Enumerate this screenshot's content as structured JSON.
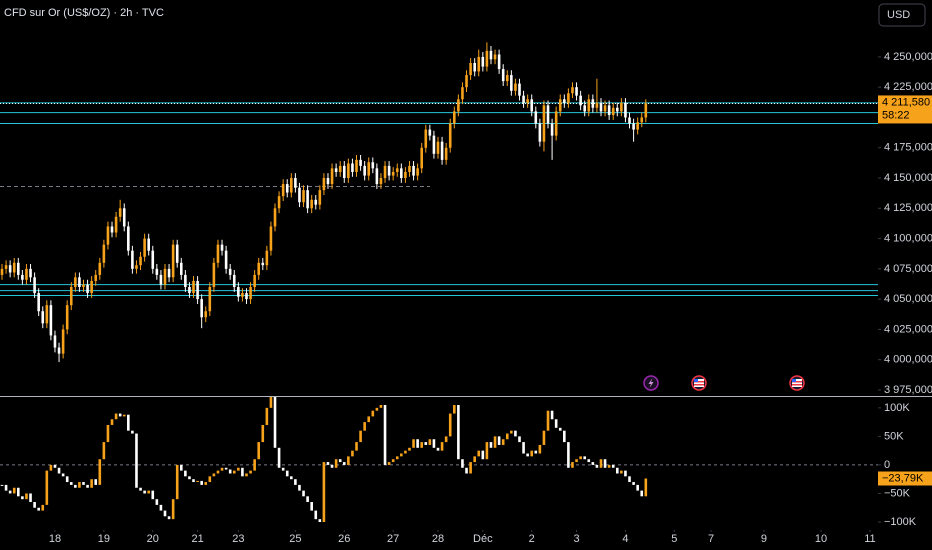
{
  "header": {
    "title": "CFD sur Or (US$/OZ) · 2h · TVC",
    "currency": "USD"
  },
  "chart_data": [
    {
      "type": "candlestick",
      "open": [
        4070,
        4075,
        4078,
        4072,
        4080,
        4070,
        4066,
        4075,
        4068,
        4055,
        4040,
        4030,
        4045,
        4020,
        4010,
        4005,
        4025,
        4045,
        4060,
        4068,
        4060,
        4062,
        4055,
        4065,
        4070,
        4080,
        4095,
        4110,
        4105,
        4118,
        4125,
        4110,
        4090,
        4075,
        4078,
        4085,
        4100,
        4090,
        4075,
        4070,
        4062,
        4075,
        4068,
        4095,
        4080,
        4070,
        4060,
        4055,
        4065,
        4050,
        4035,
        4040,
        4060,
        4080,
        4095,
        4090,
        4075,
        4070,
        4060,
        4052,
        4055,
        4050,
        4060,
        4070,
        4080,
        4078,
        4090,
        4110,
        4125,
        4135,
        4145,
        4138,
        4150,
        4142,
        4130,
        4140,
        4125,
        4132,
        4128,
        4140,
        4150,
        4145,
        4158,
        4155,
        4160,
        4150,
        4162,
        4155,
        4165,
        4160,
        4152,
        4163,
        4158,
        4145,
        4150,
        4160,
        4152,
        4155,
        4158,
        4150,
        4155,
        4160,
        4152,
        4158,
        4175,
        4190,
        4185,
        4170,
        4180,
        4165,
        4175,
        4195,
        4205,
        4215,
        4225,
        4235,
        4245,
        4238,
        4250,
        4242,
        4255,
        4248,
        4252,
        4240,
        4230,
        4235,
        4222,
        4228,
        4218,
        4212,
        4215,
        4205,
        4195,
        4180,
        4210,
        4195,
        4185,
        4205,
        4215,
        4212,
        4220,
        4225,
        4218,
        4210,
        4205,
        4215,
        4208,
        4212,
        4205,
        4210,
        4202,
        4208,
        4205,
        4212,
        4200,
        4195,
        4190,
        4196,
        4200
      ],
      "high": [
        4079,
        4082,
        4082,
        4084,
        4084,
        4074,
        4079,
        4079,
        4072,
        4059,
        4044,
        4049,
        4049,
        4024,
        4014,
        4029,
        4049,
        4064,
        4072,
        4072,
        4066,
        4066,
        4069,
        4074,
        4084,
        4099,
        4114,
        4114,
        4122,
        4132,
        4129,
        4114,
        4094,
        4082,
        4089,
        4104,
        4104,
        4094,
        4079,
        4074,
        4079,
        4079,
        4099,
        4099,
        4084,
        4074,
        4064,
        4069,
        4069,
        4054,
        4044,
        4064,
        4084,
        4099,
        4099,
        4094,
        4079,
        4074,
        4064,
        4059,
        4059,
        4064,
        4074,
        4084,
        4084,
        4094,
        4114,
        4129,
        4139,
        4149,
        4149,
        4154,
        4154,
        4146,
        4144,
        4144,
        4136,
        4136,
        4144,
        4154,
        4154,
        4162,
        4162,
        4164,
        4164,
        4166,
        4166,
        4169,
        4169,
        4164,
        4167,
        4167,
        4162,
        4154,
        4164,
        4164,
        4159,
        4162,
        4162,
        4159,
        4164,
        4164,
        4162,
        4179,
        4194,
        4194,
        4189,
        4184,
        4184,
        4179,
        4199,
        4209,
        4219,
        4229,
        4239,
        4249,
        4249,
        4256,
        4254,
        4262,
        4259,
        4256,
        4256,
        4244,
        4239,
        4239,
        4232,
        4232,
        4222,
        4219,
        4219,
        4209,
        4199,
        4214,
        4214,
        4199,
        4209,
        4219,
        4219,
        4224,
        4229,
        4229,
        4222,
        4214,
        4219,
        4219,
        4232,
        4216,
        4214,
        4214,
        4212,
        4212,
        4216,
        4216,
        4204,
        4199,
        4200,
        4204,
        4215
      ],
      "low": [
        4066,
        4071,
        4068,
        4068,
        4066,
        4062,
        4062,
        4064,
        4051,
        4036,
        4026,
        4026,
        4016,
        4006,
        3998,
        4001,
        4021,
        4041,
        4056,
        4056,
        4056,
        4051,
        4051,
        4061,
        4066,
        4076,
        4091,
        4101,
        4101,
        4114,
        4106,
        4086,
        4071,
        4071,
        4074,
        4081,
        4086,
        4071,
        4066,
        4058,
        4058,
        4064,
        4064,
        4076,
        4066,
        4056,
        4051,
        4051,
        4046,
        4026,
        4031,
        4036,
        4056,
        4076,
        4086,
        4071,
        4066,
        4056,
        4048,
        4048,
        4046,
        4046,
        4056,
        4066,
        4074,
        4074,
        4086,
        4106,
        4121,
        4131,
        4134,
        4134,
        4138,
        4126,
        4126,
        4121,
        4121,
        4124,
        4124,
        4136,
        4141,
        4141,
        4151,
        4151,
        4146,
        4146,
        4151,
        4151,
        4156,
        4148,
        4148,
        4154,
        4141,
        4141,
        4146,
        4148,
        4148,
        4151,
        4146,
        4146,
        4151,
        4148,
        4148,
        4154,
        4171,
        4181,
        4166,
        4166,
        4161,
        4161,
        4171,
        4191,
        4201,
        4211,
        4221,
        4231,
        4234,
        4234,
        4238,
        4238,
        4244,
        4244,
        4236,
        4226,
        4226,
        4218,
        4218,
        4214,
        4208,
        4208,
        4201,
        4191,
        4176,
        4172,
        4191,
        4165,
        4181,
        4201,
        4208,
        4208,
        4216,
        4214,
        4206,
        4201,
        4201,
        4204,
        4204,
        4201,
        4201,
        4198,
        4198,
        4201,
        4201,
        4196,
        4191,
        4180,
        4186,
        4192,
        4196
      ],
      "close": [
        4075,
        4078,
        4072,
        4080,
        4070,
        4066,
        4075,
        4068,
        4055,
        4040,
        4030,
        4045,
        4020,
        4010,
        4005,
        4025,
        4045,
        4060,
        4068,
        4060,
        4062,
        4055,
        4065,
        4070,
        4080,
        4095,
        4110,
        4105,
        4118,
        4125,
        4110,
        4090,
        4075,
        4078,
        4085,
        4100,
        4090,
        4075,
        4070,
        4062,
        4075,
        4068,
        4095,
        4080,
        4070,
        4060,
        4055,
        4065,
        4050,
        4035,
        4040,
        4060,
        4080,
        4095,
        4090,
        4075,
        4070,
        4060,
        4052,
        4055,
        4050,
        4060,
        4070,
        4080,
        4078,
        4090,
        4110,
        4125,
        4135,
        4145,
        4138,
        4150,
        4142,
        4130,
        4140,
        4125,
        4132,
        4128,
        4140,
        4150,
        4145,
        4158,
        4155,
        4160,
        4150,
        4162,
        4155,
        4165,
        4160,
        4152,
        4163,
        4158,
        4145,
        4150,
        4160,
        4152,
        4155,
        4158,
        4150,
        4155,
        4160,
        4152,
        4158,
        4175,
        4190,
        4185,
        4170,
        4180,
        4165,
        4175,
        4195,
        4205,
        4215,
        4225,
        4235,
        4245,
        4238,
        4250,
        4242,
        4255,
        4248,
        4252,
        4240,
        4230,
        4235,
        4222,
        4228,
        4218,
        4212,
        4215,
        4205,
        4195,
        4180,
        4210,
        4195,
        4185,
        4205,
        4215,
        4212,
        4220,
        4225,
        4218,
        4210,
        4205,
        4215,
        4208,
        4212,
        4205,
        4210,
        4202,
        4208,
        4205,
        4212,
        4200,
        4195,
        4190,
        4196,
        4200,
        4211.58
      ],
      "up_color": "#f7a21b",
      "down_color": "#ffffff",
      "xlim": [
        0,
        214
      ],
      "xticks": [
        {
          "value": 13,
          "label": "18"
        },
        {
          "value": 25,
          "label": "19"
        },
        {
          "value": 37,
          "label": "20"
        },
        {
          "value": 48,
          "label": "21"
        },
        {
          "value": 58,
          "label": "23"
        },
        {
          "value": 72,
          "label": "25"
        },
        {
          "value": 84,
          "label": "26"
        },
        {
          "value": 96,
          "label": "27"
        },
        {
          "value": 107,
          "label": "28"
        },
        {
          "value": 118,
          "label": "Déc"
        },
        {
          "value": 130,
          "label": "2"
        },
        {
          "value": 141,
          "label": "3"
        },
        {
          "value": 153,
          "label": "4"
        },
        {
          "value": 165,
          "label": "5"
        },
        {
          "value": 174,
          "label": "7"
        },
        {
          "value": 187,
          "label": "9"
        },
        {
          "value": 201,
          "label": "10"
        },
        {
          "value": 213,
          "label": "11"
        }
      ],
      "ylim": [
        3970,
        4297
      ],
      "yticks": [
        {
          "value": 4250,
          "label": "4 250,000"
        },
        {
          "value": 4225,
          "label": "4 225,000"
        },
        {
          "value": 4175,
          "label": "4 175,000"
        },
        {
          "value": 4150,
          "label": "4 150,000"
        },
        {
          "value": 4125,
          "label": "4 125,000"
        },
        {
          "value": 4100,
          "label": "4 100,000"
        },
        {
          "value": 4075,
          "label": "4 075,000"
        },
        {
          "value": 4050,
          "label": "4 050,000"
        },
        {
          "value": 4025,
          "label": "4 025,000"
        },
        {
          "value": 4000,
          "label": "4 000,000"
        },
        {
          "value": 3975,
          "label": "3 975,000"
        }
      ],
      "hlines": [
        {
          "value": 4212,
          "color": "#26c6da"
        },
        {
          "value": 4204,
          "color": "#26c6da"
        },
        {
          "value": 4195,
          "color": "#26c6da"
        },
        {
          "value": 4062,
          "color": "#26c6da"
        },
        {
          "value": 4057,
          "color": "#26c6da"
        },
        {
          "value": 4053,
          "color": "#26c6da"
        },
        {
          "value": 4143,
          "color": "#787b86",
          "style": "dashed"
        }
      ],
      "last_label": "4 211,580",
      "countdown": "58:22"
    },
    {
      "type": "waterfall",
      "values": [
        -35000,
        -45000,
        -50000,
        -40000,
        -55000,
        -60000,
        -50000,
        -65000,
        -75000,
        -80000,
        -70000,
        -10000,
        0,
        -5000,
        -15000,
        -20000,
        -30000,
        -35000,
        -40000,
        -30000,
        -35000,
        -40000,
        -25000,
        -35000,
        10000,
        40000,
        70000,
        80000,
        90000,
        85000,
        88000,
        60000,
        55000,
        -40000,
        -45000,
        -50000,
        -45000,
        -60000,
        -70000,
        -80000,
        -90000,
        -95000,
        -60000,
        0,
        -10000,
        -20000,
        -25000,
        -30000,
        -28000,
        -35000,
        -30000,
        -20000,
        -15000,
        -10000,
        -5000,
        -8000,
        -15000,
        -10000,
        -5000,
        -20000,
        -15000,
        -10000,
        10000,
        40000,
        70000,
        100000,
        120000,
        30000,
        -5000,
        -10000,
        -20000,
        -25000,
        -35000,
        -45000,
        -55000,
        -65000,
        -80000,
        -95000,
        -100000,
        5000,
        0,
        -5000,
        10000,
        5000,
        0,
        15000,
        25000,
        40000,
        60000,
        75000,
        85000,
        95000,
        100000,
        105000,
        0,
        5000,
        10000,
        15000,
        20000,
        25000,
        30000,
        45000,
        30000,
        40000,
        35000,
        45000,
        30000,
        25000,
        40000,
        50000,
        90000,
        105000,
        10000,
        -5000,
        -15000,
        5000,
        15000,
        25000,
        10000,
        40000,
        30000,
        50000,
        35000,
        45000,
        55000,
        60000,
        50000,
        40000,
        20000,
        15000,
        25000,
        20000,
        35000,
        60000,
        95000,
        80000,
        65000,
        60000,
        40000,
        -5000,
        5000,
        10000,
        15000,
        10000,
        5000,
        0,
        -5000,
        10000,
        -5000,
        0,
        -5000,
        -15000,
        -10000,
        -20000,
        -30000,
        -35000,
        -45000,
        -55000,
        -23790
      ],
      "up_color": "#f7a21b",
      "down_color": "#ffffff",
      "ylim": [
        -114000,
        119000
      ],
      "yticks": [
        {
          "value": 100000,
          "label": "100K"
        },
        {
          "value": 50000,
          "label": "50K"
        },
        0,
        {
          "value": -50000,
          "label": "−50K"
        },
        {
          "value": -100000,
          "label": "−100K"
        }
      ],
      "zero_line": true,
      "last_label": "−23,79K"
    }
  ]
}
